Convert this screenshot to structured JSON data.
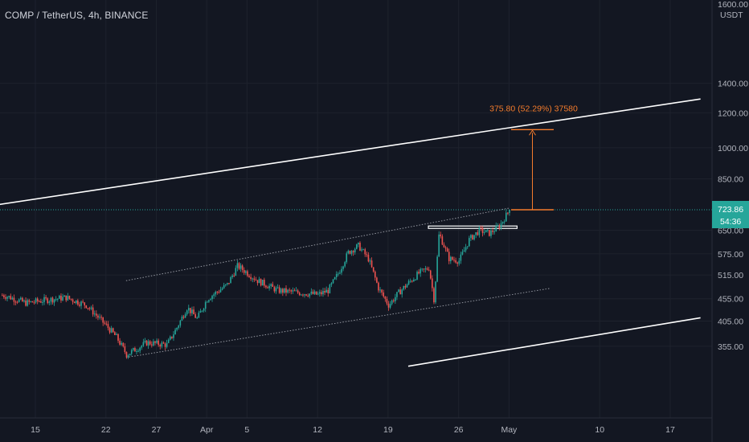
{
  "header": {
    "symbol_title": "COMP / TetherUS, 4h, BINANCE"
  },
  "price_axis": {
    "scale_mode": "log",
    "currency": "USDT",
    "top_label_partial": "1600.00",
    "tick_labels": [
      "1400.00",
      "1200.00",
      "1000.00",
      "850.00",
      "650.00",
      "575.00",
      "515.00",
      "455.00",
      "405.00",
      "355.00"
    ]
  },
  "time_axis": {
    "tick_labels": [
      "15",
      "22",
      "27",
      "Apr",
      "5",
      "12",
      "19",
      "26",
      "May",
      "10",
      "17"
    ]
  },
  "current_price": {
    "price": "723.86",
    "countdown": "54:36",
    "color": "#26a69a"
  },
  "measure": {
    "label": "375.80 (52.29%) 37580",
    "color": "#f57c2c"
  },
  "colors": {
    "background": "#131722",
    "up": "#26a69a",
    "down": "#ef5350",
    "trendline": "#ffffff",
    "grid": "#1e222d"
  },
  "chart_data": {
    "type": "candlestick",
    "title": "COMP / TetherUS, 4h, BINANCE",
    "y_scale": "log",
    "ylim": [
      320,
      1650
    ],
    "y_ticks": [
      355,
      405,
      455,
      515,
      575,
      650,
      850,
      1000,
      1200,
      1400
    ],
    "x_ticks": [
      "15",
      "22",
      "27",
      "Apr",
      "5",
      "12",
      "19",
      "26",
      "May",
      "10",
      "17"
    ],
    "last_price": 723.86,
    "measure_from": 723.86,
    "measure_to": 1099.66,
    "measure_change": 375.8,
    "measure_percent": 52.29,
    "series": [
      {
        "name": "price",
        "waypoints": [
          {
            "date": "Mar 10",
            "close": 470
          },
          {
            "date": "Mar 12",
            "close": 462
          },
          {
            "date": "Mar 14",
            "close": 445
          },
          {
            "date": "Mar 16",
            "close": 452
          },
          {
            "date": "Mar 18",
            "close": 458
          },
          {
            "date": "Mar 20",
            "close": 440
          },
          {
            "date": "Mar 22",
            "close": 395
          },
          {
            "date": "Mar 23",
            "close": 372
          },
          {
            "date": "Mar 24",
            "close": 340
          },
          {
            "date": "Mar 26",
            "close": 362
          },
          {
            "date": "Mar 28",
            "close": 358
          },
          {
            "date": "Mar 29",
            "close": 392
          },
          {
            "date": "Mar 30",
            "close": 435
          },
          {
            "date": "Mar 31",
            "close": 410
          },
          {
            "date": "Apr 1",
            "close": 455
          },
          {
            "date": "Apr 3",
            "close": 490
          },
          {
            "date": "Apr 4",
            "close": 540
          },
          {
            "date": "Apr 5",
            "close": 520
          },
          {
            "date": "Apr 6",
            "close": 500
          },
          {
            "date": "Apr 8",
            "close": 475
          },
          {
            "date": "Apr 10",
            "close": 470
          },
          {
            "date": "Apr 12",
            "close": 465
          },
          {
            "date": "Apr 13",
            "close": 475
          },
          {
            "date": "Apr 14",
            "close": 520
          },
          {
            "date": "Apr 15",
            "close": 580
          },
          {
            "date": "Apr 16",
            "close": 600
          },
          {
            "date": "Apr 17",
            "close": 560
          },
          {
            "date": "Apr 18",
            "close": 480
          },
          {
            "date": "Apr 19",
            "close": 440
          },
          {
            "date": "Apr 20",
            "close": 470
          },
          {
            "date": "Apr 21",
            "close": 495
          },
          {
            "date": "Apr 22",
            "close": 520
          },
          {
            "date": "Apr 23",
            "close": 535
          },
          {
            "date": "Apr 23.5",
            "close": 452
          },
          {
            "date": "Apr 24",
            "close": 640
          },
          {
            "date": "Apr 25",
            "close": 560
          },
          {
            "date": "Apr 26",
            "close": 555
          },
          {
            "date": "Apr 27",
            "close": 620
          },
          {
            "date": "Apr 28",
            "close": 650
          },
          {
            "date": "Apr 29",
            "close": 640
          },
          {
            "date": "Apr 30",
            "close": 665
          },
          {
            "date": "May 1",
            "close": 723.86
          }
        ]
      }
    ],
    "annotations": [
      {
        "type": "trendline",
        "style": "solid",
        "from": {
          "date": "Mar 9",
          "price": 730
        },
        "to": {
          "date": "May 20",
          "price": 1290
        }
      },
      {
        "type": "trendline",
        "style": "solid",
        "from": {
          "date": "Apr 21",
          "price": 320
        },
        "to": {
          "date": "May 20",
          "price": 412
        }
      },
      {
        "type": "channel",
        "style": "dotted",
        "from": {
          "date": "Mar 24",
          "price": 500
        },
        "to": {
          "date": "May 1",
          "price": 730
        }
      },
      {
        "type": "channel",
        "style": "dotted",
        "from": {
          "date": "Mar 24",
          "price": 335
        },
        "to": {
          "date": "May 5",
          "price": 480
        }
      },
      {
        "type": "rectangle",
        "from": {
          "date": "Apr 23",
          "price": 665
        },
        "to": {
          "date": "May 1",
          "price": 660
        }
      },
      {
        "type": "price_range",
        "from": 723.86,
        "to": 1099.66,
        "label": "375.80 (52.29%) 37580"
      }
    ]
  }
}
